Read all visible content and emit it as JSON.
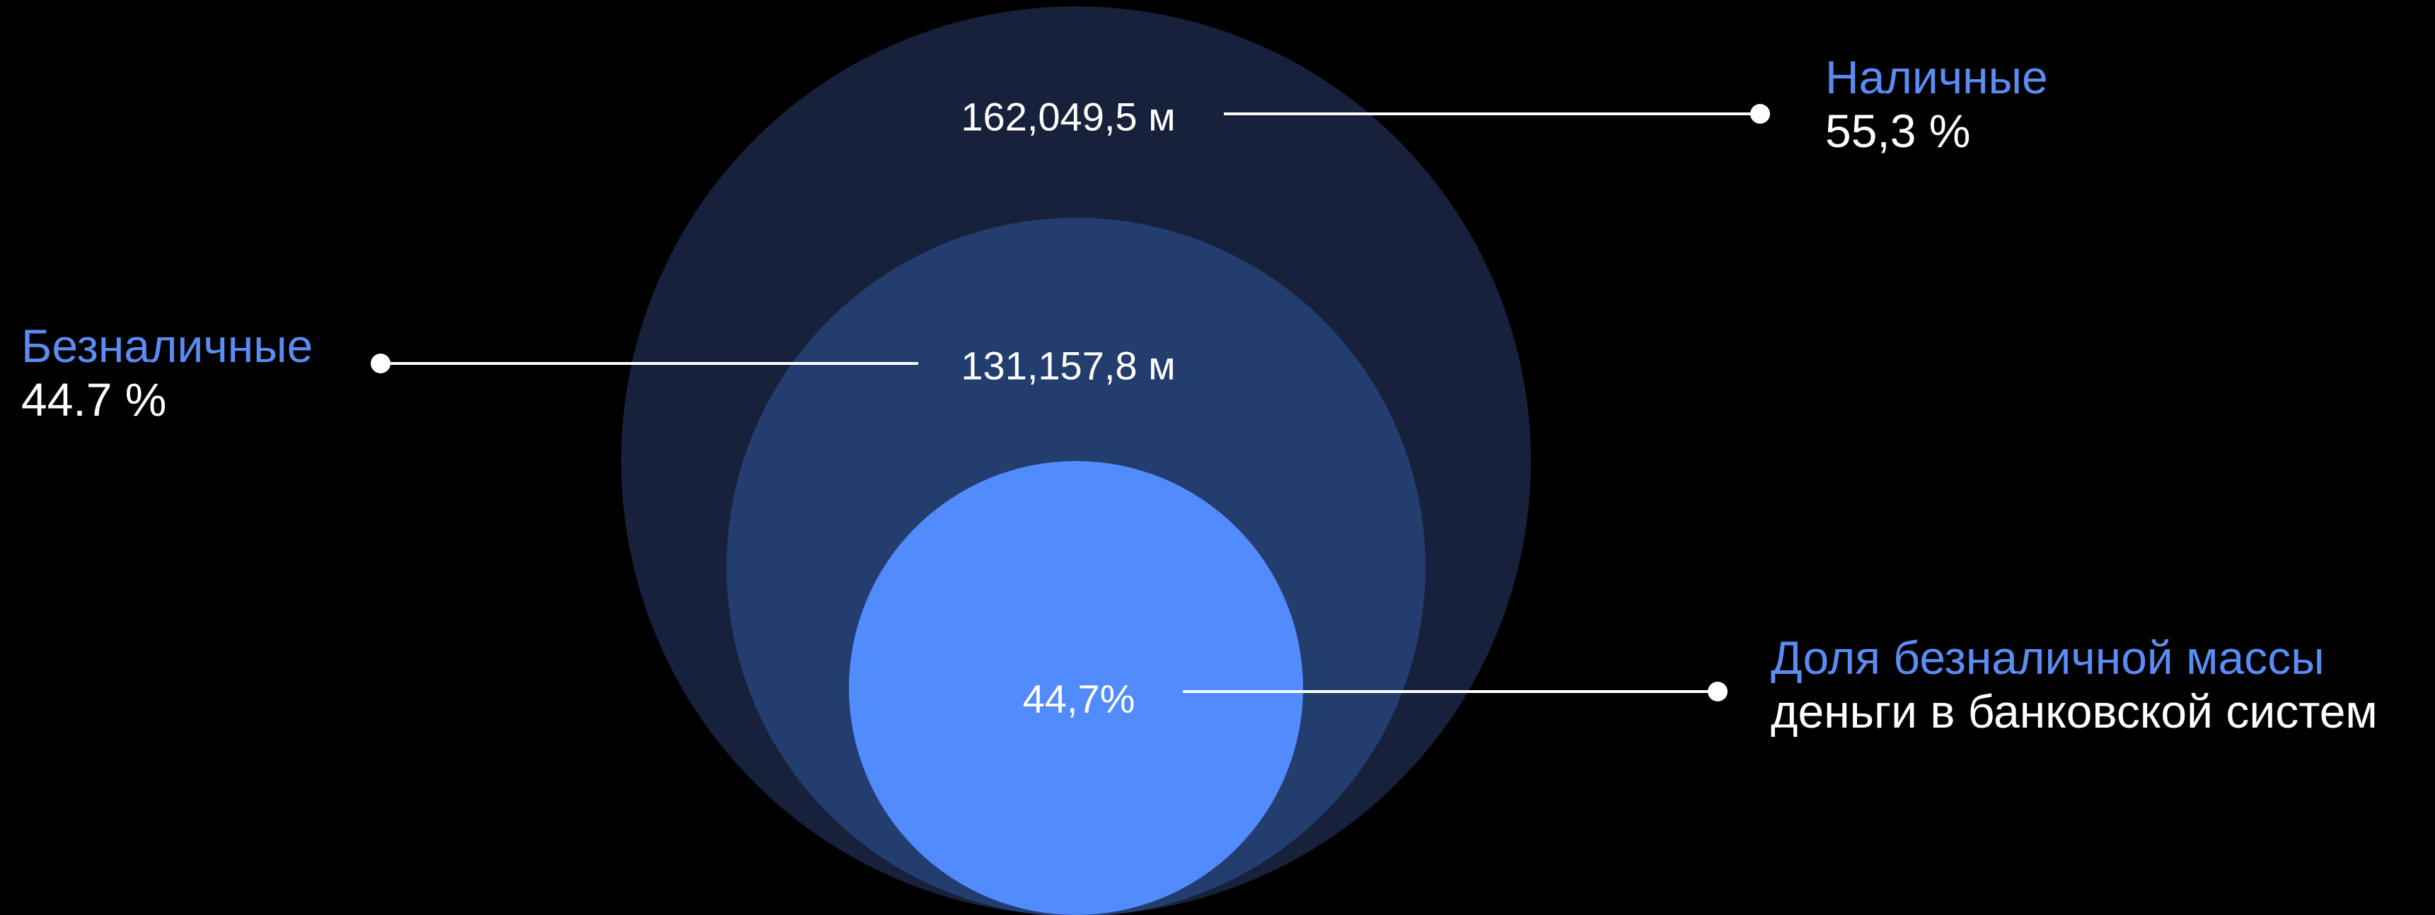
{
  "chart_data": {
    "type": "nested-circles",
    "circles": [
      {
        "value_label": "162,049,5 м",
        "color": "#17213c"
      },
      {
        "value_label": "131,157,8 м",
        "color": "#233d6e"
      },
      {
        "value_label": "44,7%",
        "color": "#528bfb"
      }
    ],
    "annotations": [
      {
        "title": "Наличные",
        "value": "55,3 %"
      },
      {
        "title": "Безналичные",
        "value": "44.7 %"
      },
      {
        "title": "Доля безналичной массы",
        "value": "деньги в банковской систем"
      }
    ]
  },
  "colors": {
    "background": "#000000",
    "annotation_title": "#5a8cf3",
    "annotation_text": "#ffffff",
    "leader_line": "#ffffff"
  }
}
